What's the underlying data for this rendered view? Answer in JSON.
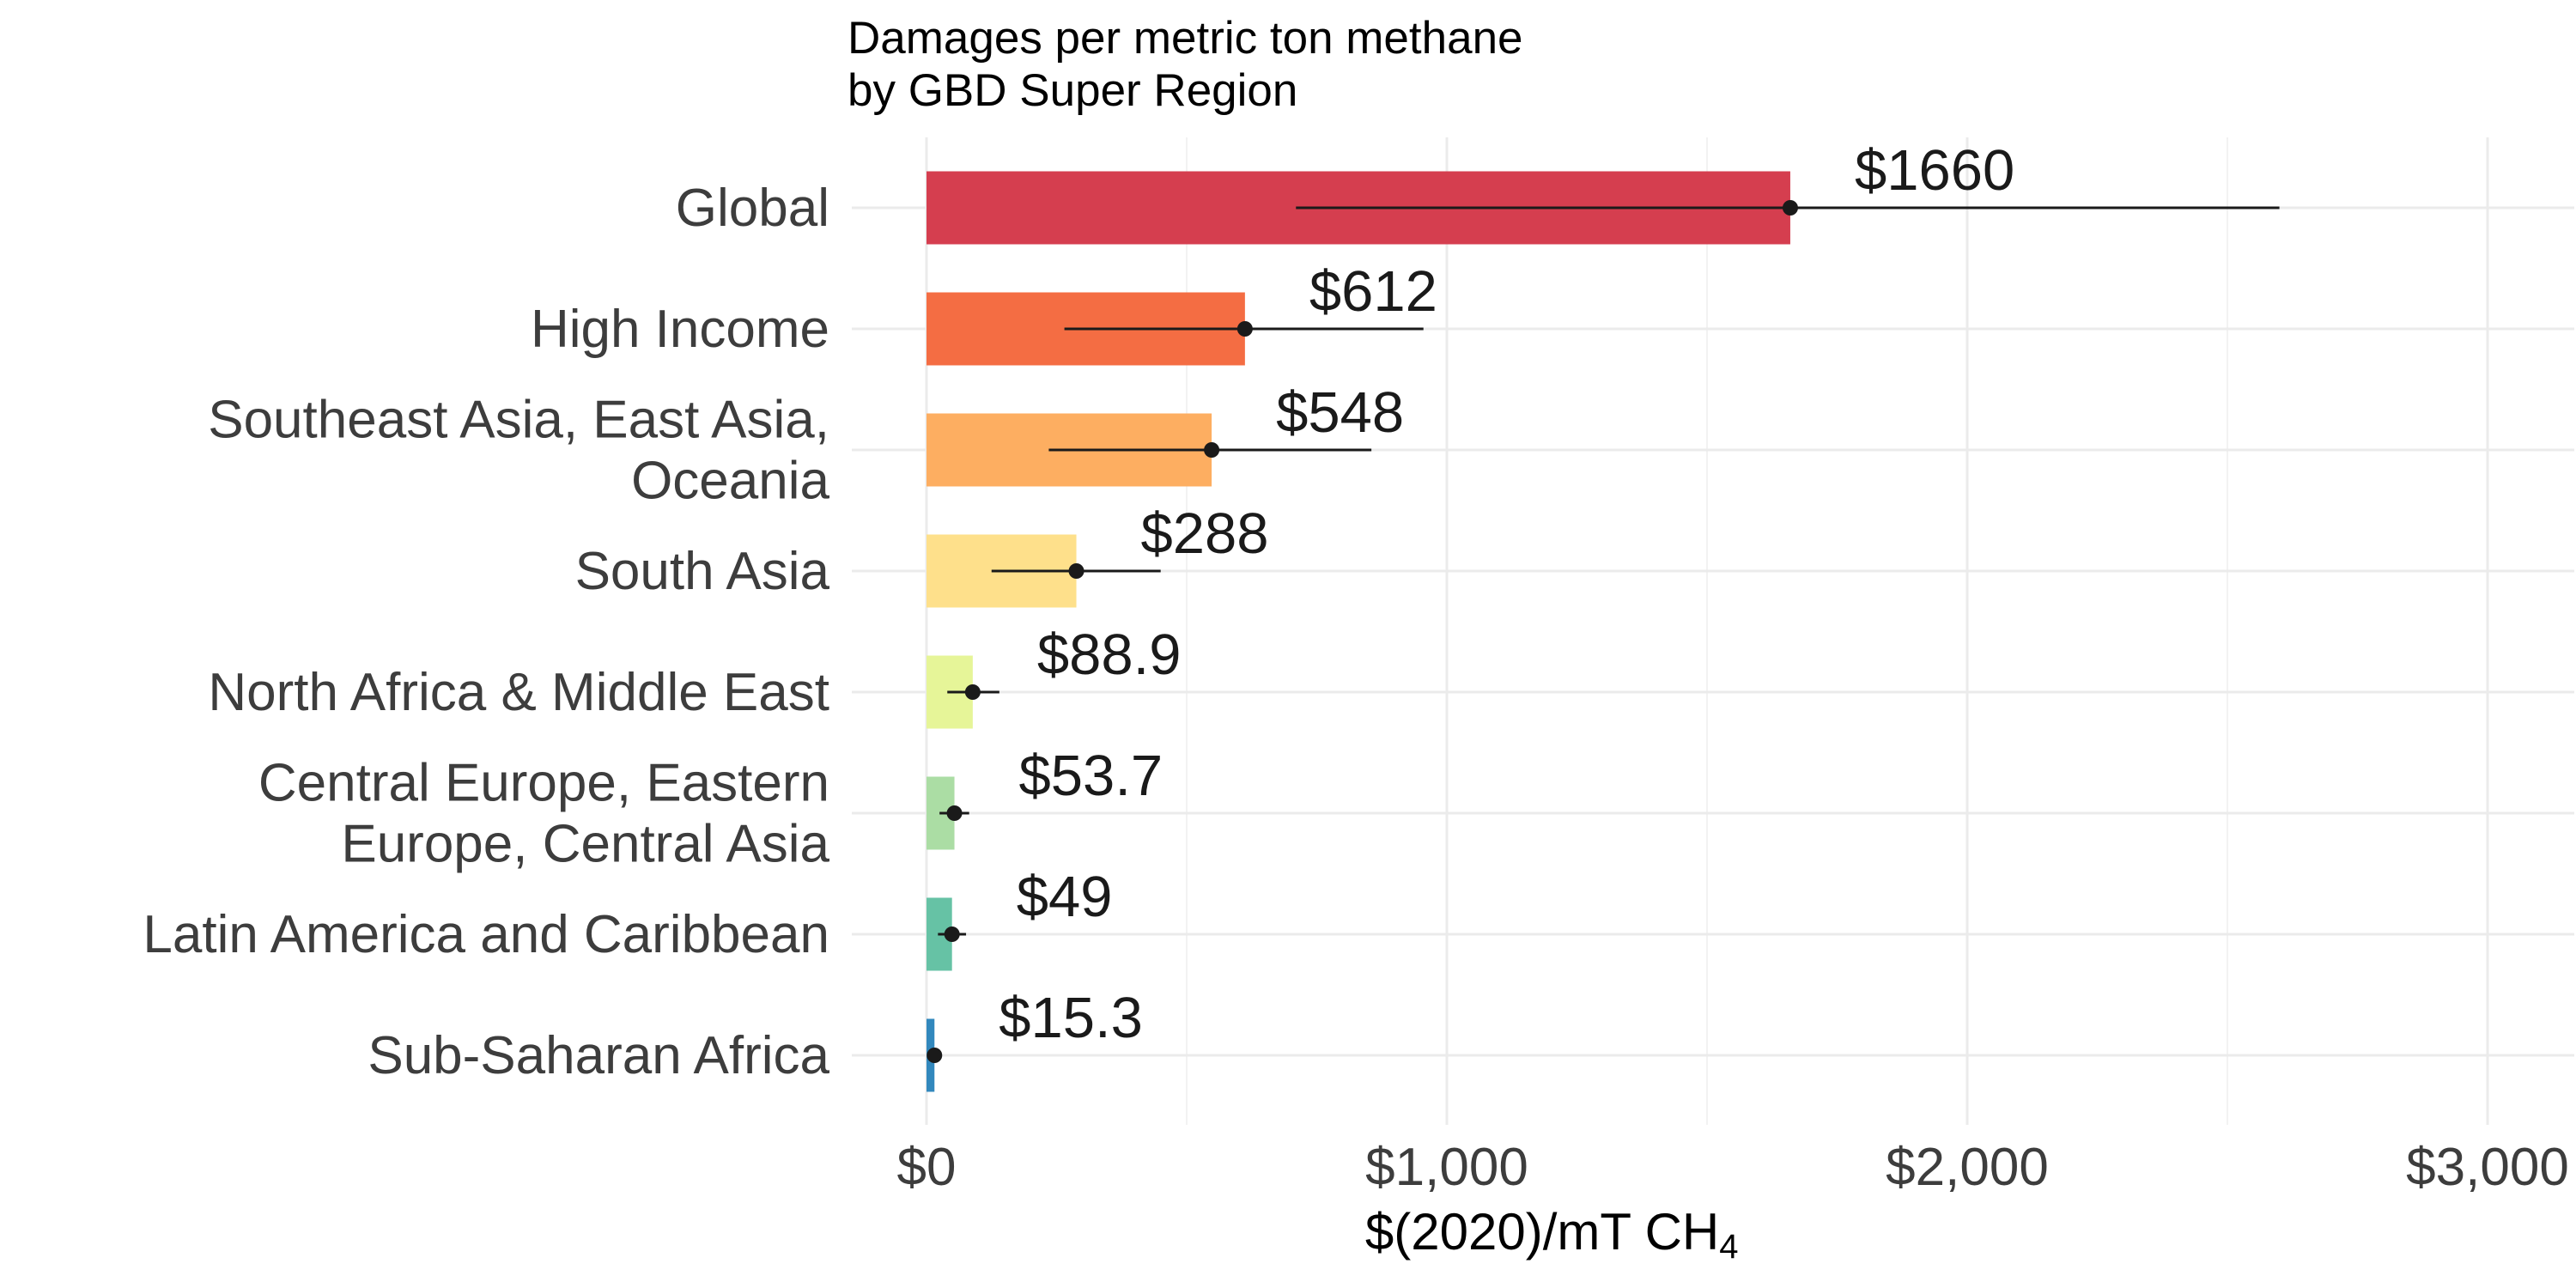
{
  "chart_data": {
    "type": "bar",
    "orientation": "horizontal",
    "title_lines": [
      "Damages per metric ton methane",
      "by GBD Super Region"
    ],
    "xlabel": {
      "main": "$(2020)/mT CH",
      "subscript": "4"
    },
    "ylabel": "",
    "xlim": [
      0,
      3000
    ],
    "xticks": [
      0,
      1000,
      2000,
      3000
    ],
    "xtick_labels": [
      "$0",
      "$1,000",
      "$2,000",
      "$3,000"
    ],
    "grid": true,
    "categories": [
      {
        "lines": [
          "Global"
        ],
        "value": 1660,
        "low": 710,
        "high": 2600,
        "value_label": "$1660",
        "color": "#d53e4f"
      },
      {
        "lines": [
          "High Income"
        ],
        "value": 612,
        "low": 265,
        "high": 955,
        "value_label": "$612",
        "color": "#f46d43"
      },
      {
        "lines": [
          "Southeast Asia, East Asia,",
          "Oceania"
        ],
        "value": 548,
        "low": 235,
        "high": 855,
        "value_label": "$548",
        "color": "#fdae61"
      },
      {
        "lines": [
          "South Asia"
        ],
        "value": 288,
        "low": 125,
        "high": 450,
        "value_label": "$288",
        "color": "#fee08b"
      },
      {
        "lines": [
          "North Africa & Middle East"
        ],
        "value": 88.9,
        "low": 40,
        "high": 140,
        "value_label": "$88.9",
        "color": "#e6f598"
      },
      {
        "lines": [
          "Central Europe, Eastern",
          "Europe, Central Asia"
        ],
        "value": 53.7,
        "low": 25,
        "high": 82,
        "value_label": "$53.7",
        "color": "#abdda4"
      },
      {
        "lines": [
          "Latin America and Caribbean"
        ],
        "value": 49,
        "low": 22,
        "high": 76,
        "value_label": "$49",
        "color": "#66c2a5"
      },
      {
        "lines": [
          "Sub-Saharan Africa"
        ],
        "value": 15.3,
        "low": 6,
        "high": 25,
        "value_label": "$15.3",
        "color": "#3288bd"
      }
    ]
  }
}
